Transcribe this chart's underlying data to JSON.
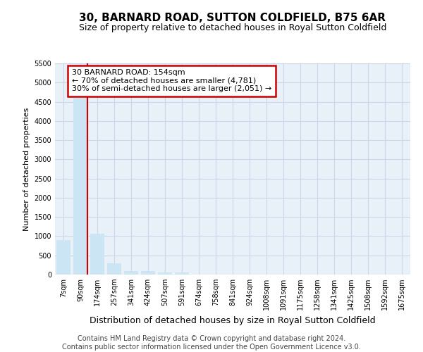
{
  "title_line1": "30, BARNARD ROAD, SUTTON COLDFIELD, B75 6AR",
  "title_line2": "Size of property relative to detached houses in Royal Sutton Coldfield",
  "xlabel": "Distribution of detached houses by size in Royal Sutton Coldfield",
  "ylabel": "Number of detached properties",
  "footer_line1": "Contains HM Land Registry data © Crown copyright and database right 2024.",
  "footer_line2": "Contains public sector information licensed under the Open Government Licence v3.0.",
  "annotation_title": "30 BARNARD ROAD: 154sqm",
  "annotation_line1": "← 70% of detached houses are smaller (4,781)",
  "annotation_line2": "30% of semi-detached houses are larger (2,051) →",
  "bin_labels": [
    "7sqm",
    "90sqm",
    "174sqm",
    "257sqm",
    "341sqm",
    "424sqm",
    "507sqm",
    "591sqm",
    "674sqm",
    "758sqm",
    "841sqm",
    "924sqm",
    "1008sqm",
    "1091sqm",
    "1175sqm",
    "1258sqm",
    "1341sqm",
    "1425sqm",
    "1508sqm",
    "1592sqm",
    "1675sqm"
  ],
  "bin_values": [
    900,
    4600,
    1070,
    300,
    100,
    90,
    50,
    50,
    0,
    0,
    0,
    0,
    0,
    0,
    0,
    0,
    0,
    0,
    0,
    0,
    0
  ],
  "bar_color": "#cce5f5",
  "vline_color": "#cc0000",
  "vline_bar_index": 1,
  "annotation_box_color": "#cc0000",
  "grid_color": "#c8d8e8",
  "ylim": [
    0,
    5500
  ],
  "yticks": [
    0,
    500,
    1000,
    1500,
    2000,
    2500,
    3000,
    3500,
    4000,
    4500,
    5000,
    5500
  ],
  "bg_color": "#e8f0f8",
  "fig_bg_color": "#ffffff",
  "title1_fontsize": 11,
  "title2_fontsize": 9,
  "ylabel_fontsize": 8,
  "xlabel_fontsize": 9,
  "footer_fontsize": 7,
  "tick_fontsize": 7,
  "ann_fontsize": 8
}
